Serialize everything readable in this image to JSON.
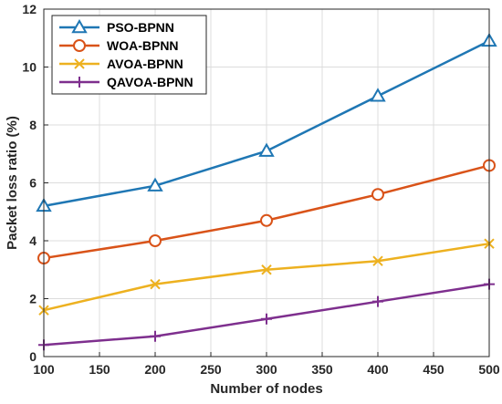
{
  "chart_data": {
    "type": "line",
    "title": "",
    "xlabel": "Number of nodes",
    "ylabel": "Packet loss ratio (%)",
    "xlim": [
      100,
      500
    ],
    "ylim": [
      0,
      12
    ],
    "xticks": [
      100,
      150,
      200,
      250,
      300,
      350,
      400,
      450,
      500
    ],
    "yticks": [
      0,
      2,
      4,
      6,
      8,
      10,
      12
    ],
    "grid": true,
    "legend_position": "top-left",
    "x": [
      100,
      200,
      300,
      400,
      500
    ],
    "series": [
      {
        "name": "PSO-BPNN",
        "values": [
          5.2,
          5.9,
          7.1,
          9.0,
          10.9
        ],
        "color": "#1f77b4",
        "marker": "triangle"
      },
      {
        "name": "WOA-BPNN",
        "values": [
          3.4,
          4.0,
          4.7,
          5.6,
          6.6
        ],
        "color": "#d95319",
        "marker": "circle"
      },
      {
        "name": "AVOA-BPNN",
        "values": [
          1.6,
          2.5,
          3.0,
          3.3,
          3.9
        ],
        "color": "#edb120",
        "marker": "x"
      },
      {
        "name": "QAVOA-BPNN",
        "values": [
          0.4,
          0.7,
          1.3,
          1.9,
          2.5
        ],
        "color": "#7e2f8e",
        "marker": "plus"
      }
    ]
  }
}
